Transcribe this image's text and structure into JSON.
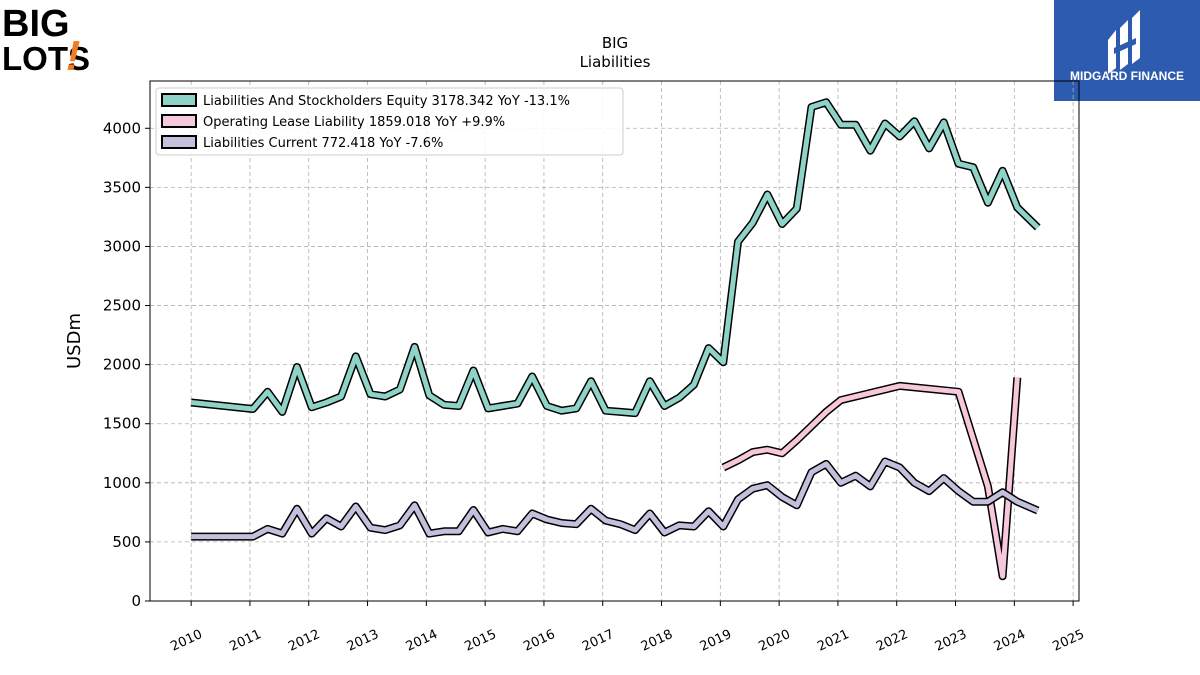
{
  "logos": {
    "left_text_1": "BIG",
    "left_text_2": "LOTS",
    "left_exclaim": "!",
    "right_text": "MIDGARD FINANCE"
  },
  "colors": {
    "equity": "#8fd3c8",
    "lease": "#f7c7db",
    "current": "#c3c0dd",
    "outline": "#000000",
    "grid": "#b0b0b0",
    "right_logo_bg": "#2d5bb0",
    "left_logo_accent": "#f47c20"
  },
  "chart_data": {
    "type": "line",
    "title": "BIG",
    "subtitle": "Liabilities",
    "ylabel": "USDm",
    "xlabel": "",
    "ylim": [
      0,
      4400
    ],
    "xlim": [
      2009.3,
      2025.1
    ],
    "yticks": [
      0,
      500,
      1000,
      1500,
      2000,
      2500,
      3000,
      3500,
      4000
    ],
    "xticks": [
      2010,
      2011,
      2012,
      2013,
      2014,
      2015,
      2016,
      2017,
      2018,
      2019,
      2020,
      2021,
      2022,
      2023,
      2024,
      2025
    ],
    "grid": true,
    "legend_position": "top-left",
    "series": [
      {
        "name": "Liabilities And Stockholders Equity",
        "legend": "Liabilities And Stockholders Equity  3178.342 YoY -13.1%",
        "color_key": "equity",
        "points": [
          [
            2010.0,
            1680
          ],
          [
            2011.05,
            1625
          ],
          [
            2011.3,
            1770
          ],
          [
            2011.55,
            1600
          ],
          [
            2011.8,
            1980
          ],
          [
            2012.05,
            1640
          ],
          [
            2012.3,
            1680
          ],
          [
            2012.55,
            1730
          ],
          [
            2012.8,
            2070
          ],
          [
            2013.05,
            1750
          ],
          [
            2013.3,
            1730
          ],
          [
            2013.55,
            1790
          ],
          [
            2013.8,
            2150
          ],
          [
            2014.05,
            1740
          ],
          [
            2014.3,
            1660
          ],
          [
            2014.55,
            1650
          ],
          [
            2014.8,
            1950
          ],
          [
            2015.05,
            1630
          ],
          [
            2015.3,
            1650
          ],
          [
            2015.55,
            1670
          ],
          [
            2015.8,
            1900
          ],
          [
            2016.05,
            1650
          ],
          [
            2016.3,
            1610
          ],
          [
            2016.55,
            1630
          ],
          [
            2016.8,
            1860
          ],
          [
            2017.05,
            1610
          ],
          [
            2017.3,
            1600
          ],
          [
            2017.55,
            1590
          ],
          [
            2017.8,
            1860
          ],
          [
            2018.05,
            1650
          ],
          [
            2018.3,
            1720
          ],
          [
            2018.55,
            1830
          ],
          [
            2018.8,
            2140
          ],
          [
            2019.05,
            2020
          ],
          [
            2019.3,
            3040
          ],
          [
            2019.55,
            3200
          ],
          [
            2019.8,
            3440
          ],
          [
            2020.05,
            3190
          ],
          [
            2020.3,
            3320
          ],
          [
            2020.55,
            4180
          ],
          [
            2020.8,
            4220
          ],
          [
            2021.05,
            4030
          ],
          [
            2021.3,
            4030
          ],
          [
            2021.55,
            3810
          ],
          [
            2021.8,
            4040
          ],
          [
            2022.05,
            3930
          ],
          [
            2022.3,
            4060
          ],
          [
            2022.55,
            3830
          ],
          [
            2022.8,
            4050
          ],
          [
            2023.05,
            3700
          ],
          [
            2023.3,
            3670
          ],
          [
            2023.55,
            3370
          ],
          [
            2023.8,
            3640
          ],
          [
            2024.05,
            3330
          ],
          [
            2024.4,
            3160
          ]
        ]
      },
      {
        "name": "Operating Lease Liability",
        "legend": "Operating Lease Liability  1859.018 YoY +9.9%",
        "color_key": "lease",
        "points": [
          [
            2019.05,
            1130
          ],
          [
            2019.3,
            1190
          ],
          [
            2019.55,
            1260
          ],
          [
            2019.8,
            1280
          ],
          [
            2020.05,
            1250
          ],
          [
            2020.3,
            1360
          ],
          [
            2020.55,
            1480
          ],
          [
            2020.8,
            1600
          ],
          [
            2021.05,
            1700
          ],
          [
            2022.05,
            1820
          ],
          [
            2023.05,
            1770
          ],
          [
            2023.55,
            970
          ],
          [
            2023.8,
            210
          ],
          [
            2024.05,
            1890
          ]
        ]
      },
      {
        "name": "Liabilities Current",
        "legend": "Liabilities Current  772.418 YoY -7.6%",
        "color_key": "current",
        "points": [
          [
            2010.0,
            545
          ],
          [
            2011.05,
            545
          ],
          [
            2011.3,
            610
          ],
          [
            2011.55,
            570
          ],
          [
            2011.8,
            780
          ],
          [
            2012.05,
            570
          ],
          [
            2012.3,
            700
          ],
          [
            2012.55,
            630
          ],
          [
            2012.8,
            800
          ],
          [
            2013.05,
            620
          ],
          [
            2013.3,
            600
          ],
          [
            2013.55,
            640
          ],
          [
            2013.8,
            810
          ],
          [
            2014.05,
            570
          ],
          [
            2014.3,
            590
          ],
          [
            2014.55,
            590
          ],
          [
            2014.8,
            770
          ],
          [
            2015.05,
            580
          ],
          [
            2015.3,
            610
          ],
          [
            2015.55,
            590
          ],
          [
            2015.8,
            740
          ],
          [
            2016.05,
            690
          ],
          [
            2016.3,
            660
          ],
          [
            2016.55,
            650
          ],
          [
            2016.8,
            780
          ],
          [
            2017.05,
            680
          ],
          [
            2017.3,
            650
          ],
          [
            2017.55,
            600
          ],
          [
            2017.8,
            740
          ],
          [
            2018.05,
            580
          ],
          [
            2018.3,
            640
          ],
          [
            2018.55,
            630
          ],
          [
            2018.8,
            760
          ],
          [
            2019.05,
            630
          ],
          [
            2019.3,
            860
          ],
          [
            2019.55,
            950
          ],
          [
            2019.8,
            980
          ],
          [
            2020.05,
            880
          ],
          [
            2020.3,
            810
          ],
          [
            2020.55,
            1090
          ],
          [
            2020.8,
            1160
          ],
          [
            2021.05,
            1000
          ],
          [
            2021.3,
            1060
          ],
          [
            2021.55,
            970
          ],
          [
            2021.8,
            1180
          ],
          [
            2022.05,
            1130
          ],
          [
            2022.3,
            1000
          ],
          [
            2022.55,
            930
          ],
          [
            2022.8,
            1040
          ],
          [
            2023.05,
            930
          ],
          [
            2023.3,
            840
          ],
          [
            2023.55,
            840
          ],
          [
            2023.8,
            920
          ],
          [
            2024.05,
            840
          ],
          [
            2024.4,
            765
          ]
        ]
      }
    ]
  }
}
